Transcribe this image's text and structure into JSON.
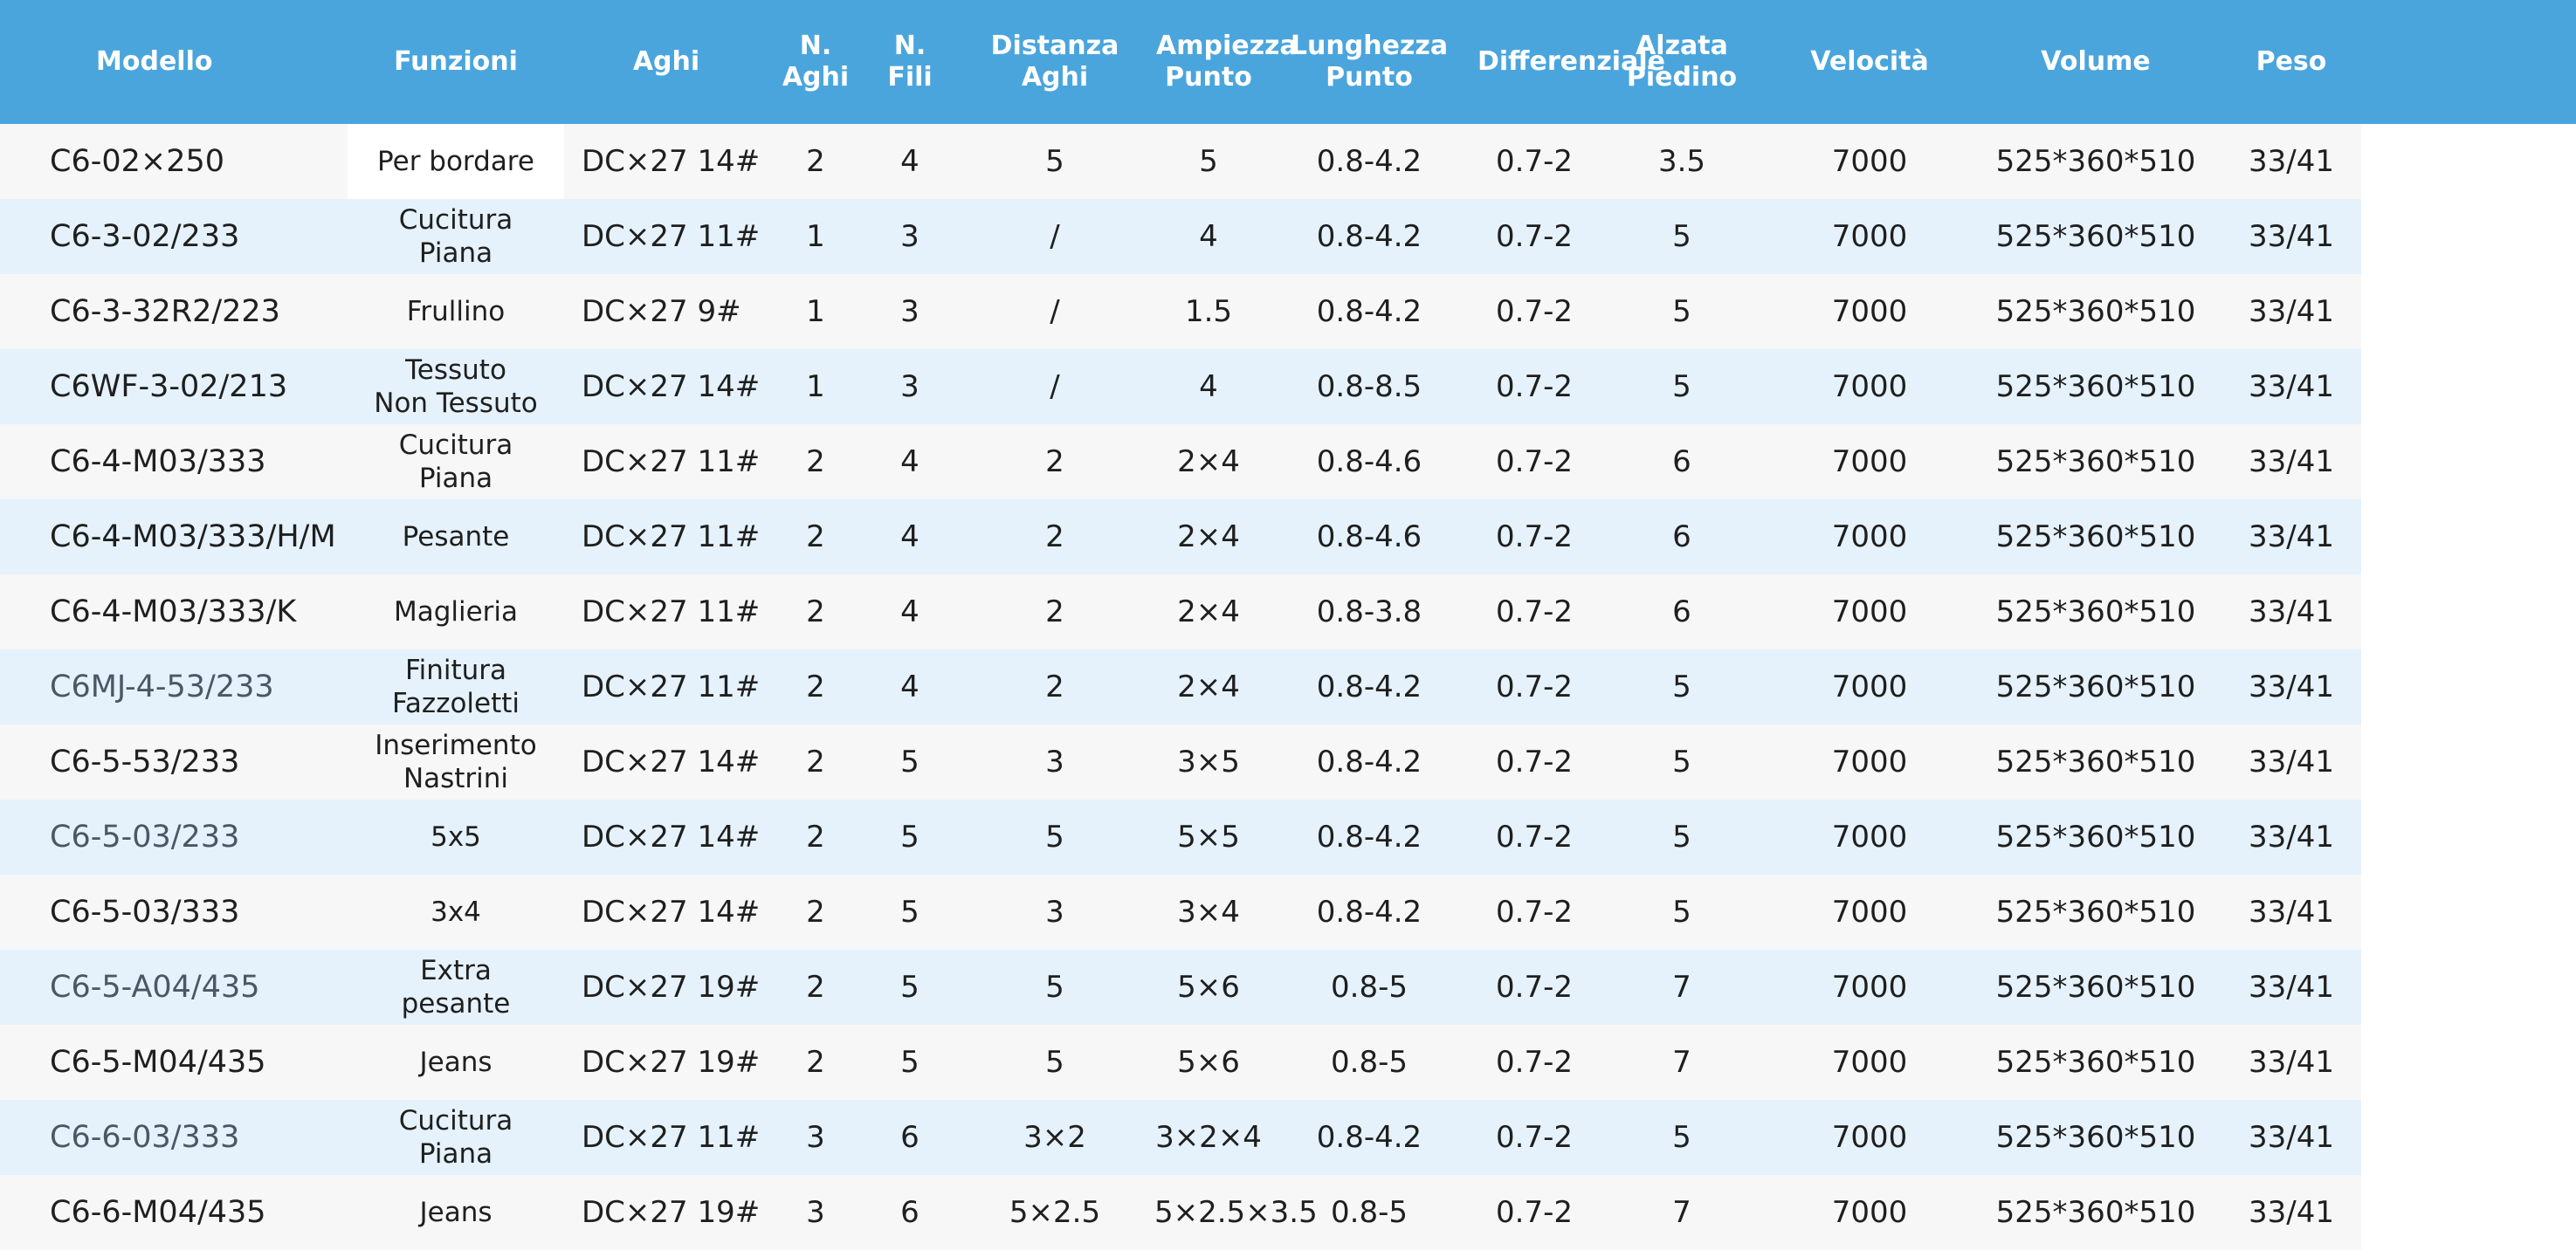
{
  "headers": [
    "Modello",
    "Funzioni",
    "Aghi",
    "N.\nAghi",
    "N.\nFili",
    "Distanza\nAghi",
    "Ampiezza\nPunto",
    "Lunghezza\nPunto",
    "Differenziale",
    "Alzata\nPiedino",
    "Velocità",
    "Volume",
    "Peso"
  ],
  "rows": [
    {
      "model": "C6-02×250",
      "func": "Per bordare",
      "needles": "DC×27 14#",
      "n_needles": "2",
      "n_threads": "4",
      "needle_distance": "5",
      "stitch_width": "5",
      "stitch_length": "0.8-4.2",
      "differential": "0.7-2",
      "foot_lift": "3.5",
      "speed": "7000",
      "volume": "525*360*510",
      "weight": "33/41"
    },
    {
      "model": "C6-3-02/233",
      "func": "Cucitura\nPiana",
      "needles": "DC×27 11#",
      "n_needles": "1",
      "n_threads": "3",
      "needle_distance": "/",
      "stitch_width": "4",
      "stitch_length": "0.8-4.2",
      "differential": "0.7-2",
      "foot_lift": "5",
      "speed": "7000",
      "volume": "525*360*510",
      "weight": "33/41"
    },
    {
      "model": "C6-3-32R2/223",
      "func": "Frullino",
      "needles": "DC×27 9#",
      "n_needles": "1",
      "n_threads": "3",
      "needle_distance": "/",
      "stitch_width": "1.5",
      "stitch_length": "0.8-4.2",
      "differential": "0.7-2",
      "foot_lift": "5",
      "speed": "7000",
      "volume": "525*360*510",
      "weight": "33/41"
    },
    {
      "model": "C6WF-3-02/213",
      "func": "Tessuto\nNon Tessuto",
      "needles": "DC×27 14#",
      "n_needles": "1",
      "n_threads": "3",
      "needle_distance": "/",
      "stitch_width": "4",
      "stitch_length": "0.8-8.5",
      "differential": "0.7-2",
      "foot_lift": "5",
      "speed": "7000",
      "volume": "525*360*510",
      "weight": "33/41"
    },
    {
      "model": "C6-4-M03/333",
      "func": "Cucitura\nPiana",
      "needles": "DC×27 11#",
      "n_needles": "2",
      "n_threads": "4",
      "needle_distance": "2",
      "stitch_width": "2×4",
      "stitch_length": "0.8-4.6",
      "differential": "0.7-2",
      "foot_lift": "6",
      "speed": "7000",
      "volume": "525*360*510",
      "weight": "33/41"
    },
    {
      "model": "C6-4-M03/333/H/M",
      "func": "Pesante",
      "needles": "DC×27 11#",
      "n_needles": "2",
      "n_threads": "4",
      "needle_distance": "2",
      "stitch_width": "2×4",
      "stitch_length": "0.8-4.6",
      "differential": "0.7-2",
      "foot_lift": "6",
      "speed": "7000",
      "volume": "525*360*510",
      "weight": "33/41"
    },
    {
      "model": "C6-4-M03/333/K",
      "func": "Maglieria",
      "needles": "DC×27 11#",
      "n_needles": "2",
      "n_threads": "4",
      "needle_distance": "2",
      "stitch_width": "2×4",
      "stitch_length": "0.8-3.8",
      "differential": "0.7-2",
      "foot_lift": "6",
      "speed": "7000",
      "volume": "525*360*510",
      "weight": "33/41"
    },
    {
      "model": "C6MJ-4-53/233",
      "func": "Finitura\nFazzoletti",
      "needles": "DC×27 11#",
      "n_needles": "2",
      "n_threads": "4",
      "needle_distance": "2",
      "stitch_width": "2×4",
      "stitch_length": "0.8-4.2",
      "differential": "0.7-2",
      "foot_lift": "5",
      "speed": "7000",
      "volume": "525*360*510",
      "weight": "33/41"
    },
    {
      "model": "C6-5-53/233",
      "func": "Inserimento\nNastrini",
      "needles": "DC×27 14#",
      "n_needles": "2",
      "n_threads": "5",
      "needle_distance": "3",
      "stitch_width": "3×5",
      "stitch_length": "0.8-4.2",
      "differential": "0.7-2",
      "foot_lift": "5",
      "speed": "7000",
      "volume": "525*360*510",
      "weight": "33/41"
    },
    {
      "model": "C6-5-03/233",
      "func": "5x5",
      "needles": "DC×27 14#",
      "n_needles": "2",
      "n_threads": "5",
      "needle_distance": "5",
      "stitch_width": "5×5",
      "stitch_length": "0.8-4.2",
      "differential": "0.7-2",
      "foot_lift": "5",
      "speed": "7000",
      "volume": "525*360*510",
      "weight": "33/41"
    },
    {
      "model": "C6-5-03/333",
      "func": "3x4",
      "needles": "DC×27 14#",
      "n_needles": "2",
      "n_threads": "5",
      "needle_distance": "3",
      "stitch_width": "3×4",
      "stitch_length": "0.8-4.2",
      "differential": "0.7-2",
      "foot_lift": "5",
      "speed": "7000",
      "volume": "525*360*510",
      "weight": "33/41"
    },
    {
      "model": "C6-5-A04/435",
      "func": "Extra\npesante",
      "needles": "DC×27 19#",
      "n_needles": "2",
      "n_threads": "5",
      "needle_distance": "5",
      "stitch_width": "5×6",
      "stitch_length": "0.8-5",
      "differential": "0.7-2",
      "foot_lift": "7",
      "speed": "7000",
      "volume": "525*360*510",
      "weight": "33/41"
    },
    {
      "model": "C6-5-M04/435",
      "func": "Jeans",
      "needles": "DC×27 19#",
      "n_needles": "2",
      "n_threads": "5",
      "needle_distance": "5",
      "stitch_width": "5×6",
      "stitch_length": "0.8-5",
      "differential": "0.7-2",
      "foot_lift": "7",
      "speed": "7000",
      "volume": "525*360*510",
      "weight": "33/41"
    },
    {
      "model": "C6-6-03/333",
      "func": "Cucitura\nPiana",
      "needles": "DC×27 11#",
      "n_needles": "3",
      "n_threads": "6",
      "needle_distance": "3×2",
      "stitch_width": "3×2×4",
      "stitch_length": "0.8-4.2",
      "differential": "0.7-2",
      "foot_lift": "5",
      "speed": "7000",
      "volume": "525*360*510",
      "weight": "33/41"
    },
    {
      "model": "C6-6-M04/435",
      "func": "Jeans",
      "needles": "DC×27 19#",
      "n_needles": "3",
      "n_threads": "6",
      "needle_distance": "5×2.5",
      "stitch_width": "5×2.5×3.5",
      "stitch_length": "0.8-5",
      "differential": "0.7-2",
      "foot_lift": "7",
      "speed": "7000",
      "volume": "525*360*510",
      "weight": "33/41"
    }
  ]
}
